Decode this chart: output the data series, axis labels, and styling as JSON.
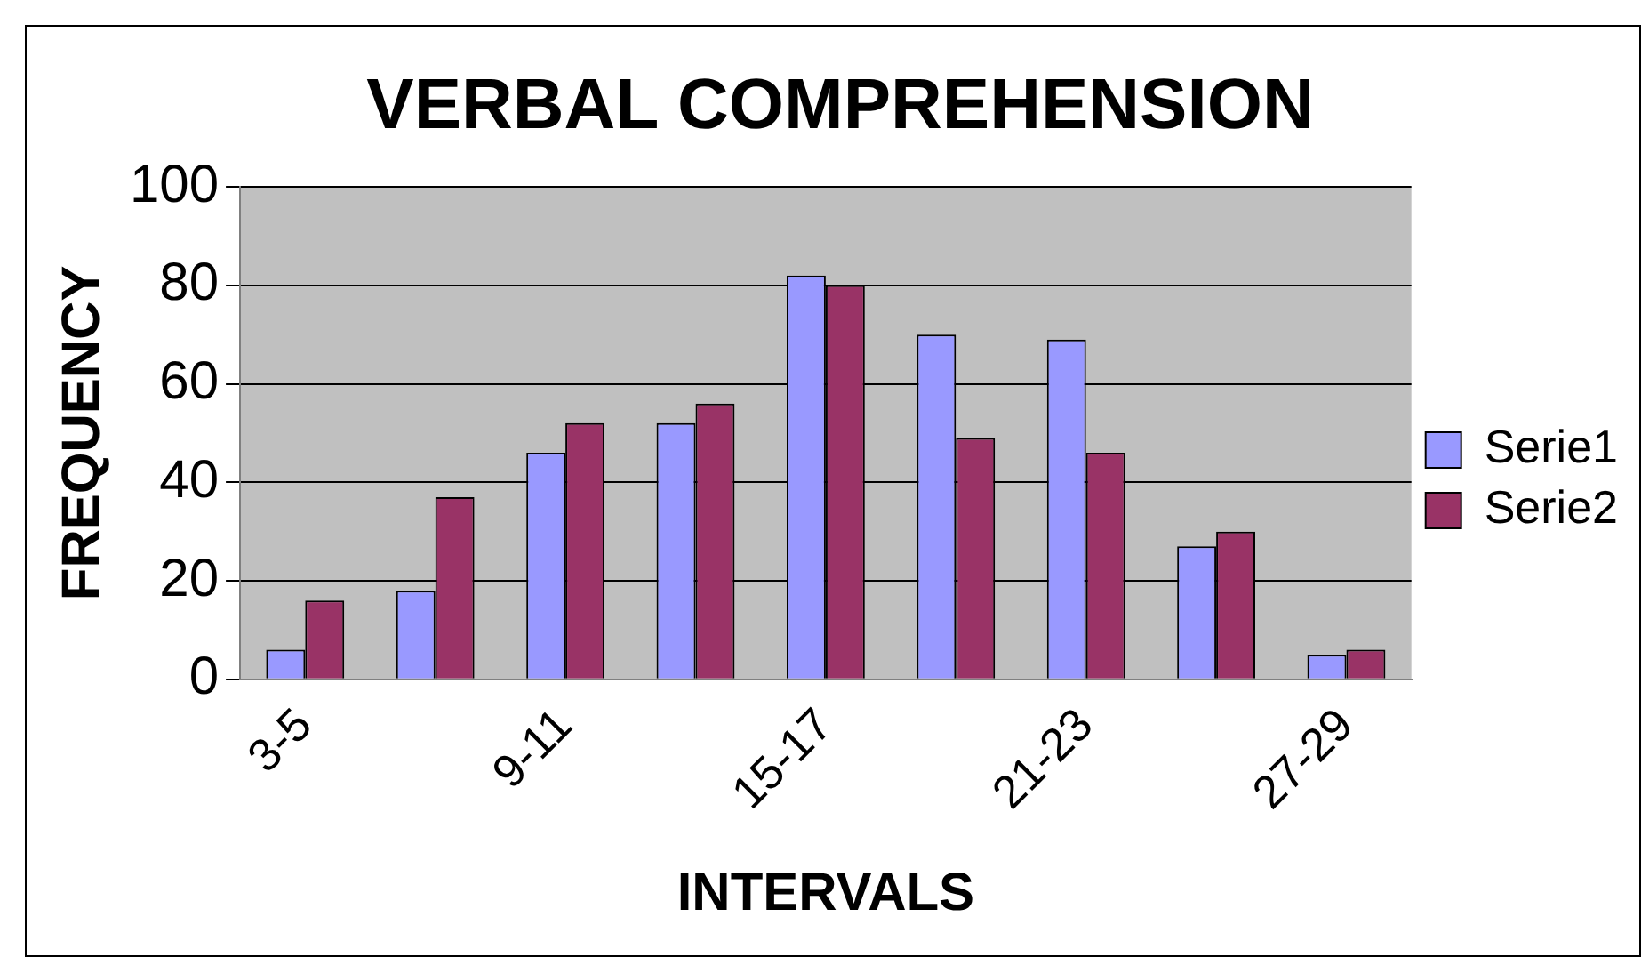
{
  "chart_data": {
    "type": "bar",
    "title": "VERBAL COMPREHENSION",
    "xlabel": "INTERVALS",
    "ylabel": "FREQUENCY",
    "categories": [
      "3-5",
      null,
      "9-11",
      null,
      "15-17",
      null,
      "21-23",
      null,
      "27-29"
    ],
    "series": [
      {
        "name": "Serie1",
        "color": "#9999ff",
        "values": [
          6,
          18,
          46,
          52,
          82,
          70,
          69,
          27,
          5
        ]
      },
      {
        "name": "Serie2",
        "color": "#993366",
        "values": [
          16,
          37,
          52,
          56,
          80,
          49,
          46,
          30,
          6
        ]
      }
    ],
    "ylim": [
      0,
      100
    ],
    "yticks": [
      0,
      20,
      40,
      60,
      80,
      100
    ],
    "grid": "y",
    "legend": "right"
  }
}
